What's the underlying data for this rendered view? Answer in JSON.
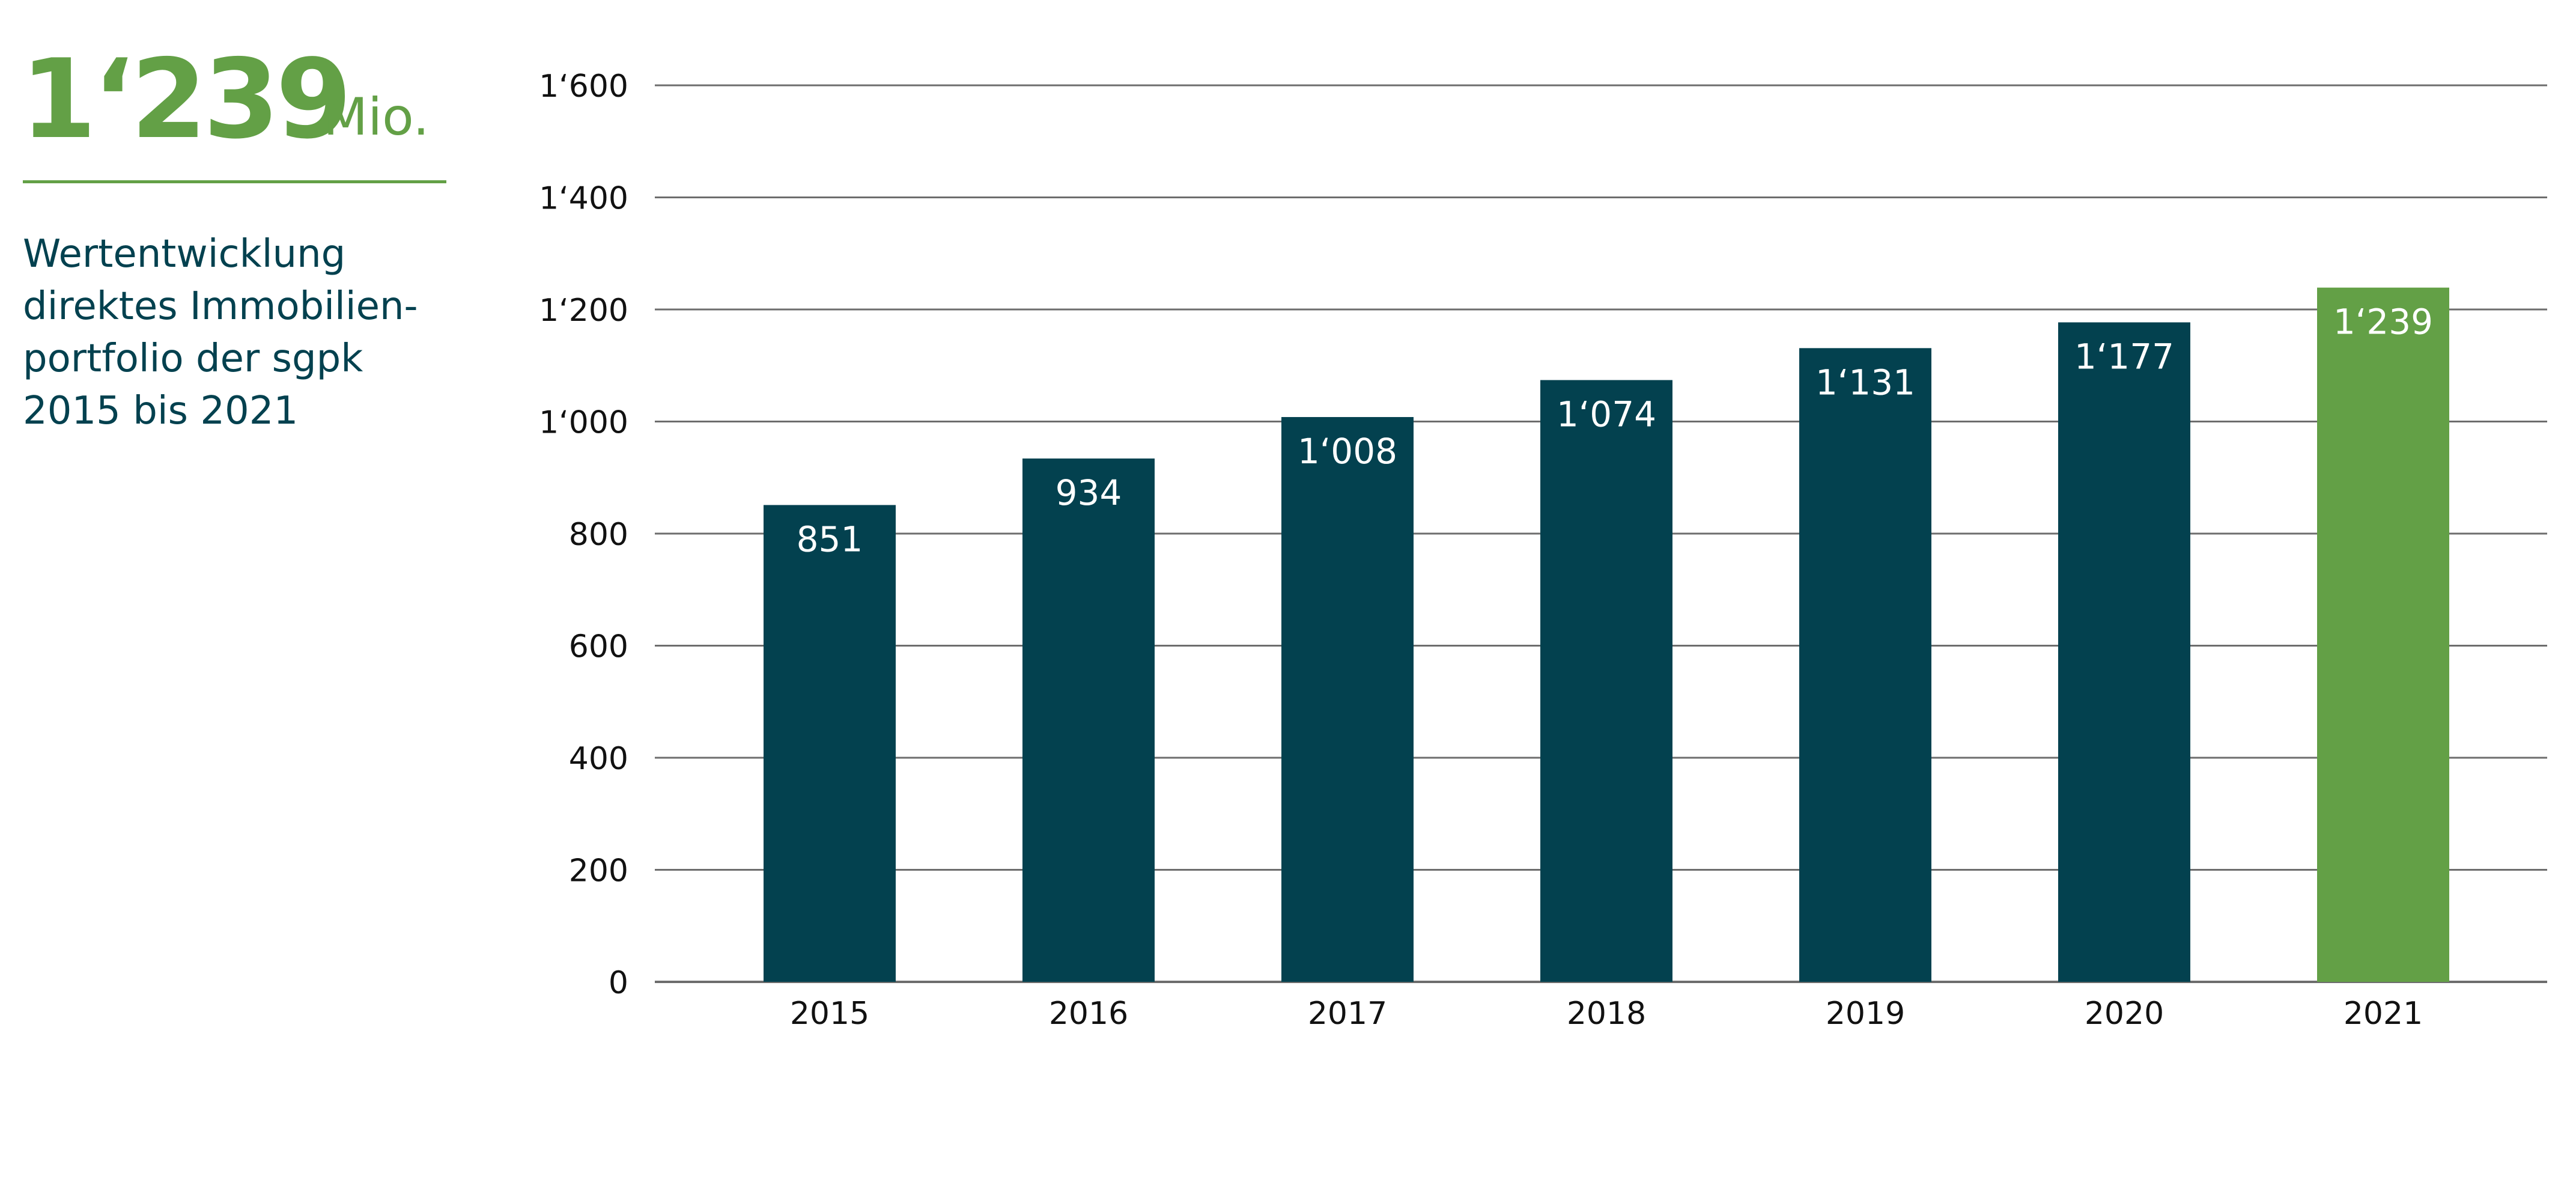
{
  "kpi": {
    "value": "1‘239",
    "unit": "Mio.",
    "description_lines": [
      "Wertentwicklung",
      "direktes Immobilien-",
      "portfolio der sgpk",
      "2015 bis 2021"
    ]
  },
  "colors": {
    "bar_default": "#03414f",
    "bar_highlight": "#63a046",
    "accent": "#63a046",
    "text_dark": "#03414f",
    "axis_text": "#111111",
    "gridline": "#6d6d6d",
    "bar_label": "#ffffff"
  },
  "chart_data": {
    "type": "bar",
    "categories": [
      "2015",
      "2016",
      "2017",
      "2018",
      "2019",
      "2020",
      "2021"
    ],
    "values": [
      851,
      934,
      1008,
      1074,
      1131,
      1177,
      1239
    ],
    "value_labels": [
      "851",
      "934",
      "1‘008",
      "1‘074",
      "1‘131",
      "1‘177",
      "1‘239"
    ],
    "highlight_index": 6,
    "ylim": [
      0,
      1600
    ],
    "yticks": [
      0,
      200,
      400,
      600,
      800,
      1000,
      1200,
      1400,
      1600
    ],
    "ytick_labels": [
      "0",
      "200",
      "400",
      "600",
      "800",
      "1‘000",
      "1‘200",
      "1‘400",
      "1‘600"
    ],
    "grid": true,
    "title": "",
    "xlabel": "",
    "ylabel": ""
  }
}
